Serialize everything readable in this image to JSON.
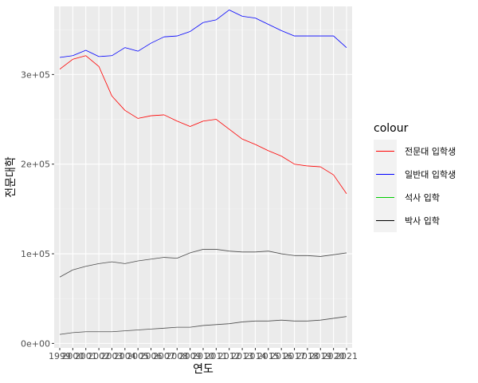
{
  "chart_data": {
    "type": "line",
    "xlabel": "연도",
    "ylabel": "전문대학",
    "legend_title": "colour",
    "legend_position": "right",
    "grid": true,
    "xlim": [
      1999,
      2021
    ],
    "ylim": [
      -5000,
      376000
    ],
    "x": [
      1999,
      2000,
      2001,
      2002,
      2003,
      2004,
      2005,
      2006,
      2007,
      2008,
      2009,
      2010,
      2011,
      2012,
      2013,
      2014,
      2015,
      2016,
      2017,
      2018,
      2019,
      2020,
      2021
    ],
    "x_ticks": [
      1999,
      2000,
      2001,
      2002,
      2003,
      2004,
      2005,
      2006,
      2007,
      2008,
      2009,
      2010,
      2011,
      2012,
      2013,
      2014,
      2015,
      2016,
      2017,
      2018,
      2019,
      2020,
      2021
    ],
    "x_tick_labels": [
      "1999",
      "2000",
      "2001",
      "2002",
      "2003",
      "2004",
      "2005",
      "2006",
      "2007",
      "2008",
      "2009",
      "2010",
      "2011",
      "2012",
      "2013",
      "2014",
      "2015",
      "2016",
      "2017",
      "2018",
      "2019",
      "2020",
      "2021"
    ],
    "y_ticks": [
      0,
      100000,
      200000,
      300000
    ],
    "y_tick_labels": [
      "0e+00",
      "1e+05",
      "2e+05",
      "3e+05"
    ],
    "series": [
      {
        "name": "전문대 입학생",
        "color": "#ff0000",
        "legend_color": "#ff0000",
        "values": [
          306000,
          317000,
          321000,
          309000,
          276000,
          260000,
          251000,
          254000,
          255000,
          248000,
          242000,
          248000,
          250000,
          239000,
          228000,
          222000,
          215000,
          209000,
          200000,
          198000,
          197000,
          188000,
          167000
        ]
      },
      {
        "name": "일반대 입학생",
        "color": "#0000ff",
        "legend_color": "#0000ff",
        "values": [
          319000,
          321000,
          327000,
          320000,
          321000,
          330000,
          326000,
          335000,
          342000,
          343000,
          348000,
          358000,
          361000,
          372000,
          365000,
          363000,
          356000,
          349000,
          343000,
          343000,
          343000,
          343000,
          330000
        ]
      },
      {
        "name": "석사 입학",
        "color": "#4d4d4d",
        "legend_color": "#00cc00",
        "values": [
          74000,
          82000,
          86000,
          89000,
          91000,
          89000,
          92000,
          94000,
          96000,
          95000,
          101000,
          105000,
          105000,
          103000,
          102000,
          102000,
          103000,
          100000,
          98000,
          98000,
          97000,
          99000,
          101000
        ]
      },
      {
        "name": "박사 입학",
        "color": "#4d4d4d",
        "legend_color": "#000000",
        "values": [
          10000,
          12000,
          13000,
          13000,
          13000,
          14000,
          15000,
          16000,
          17000,
          18000,
          18000,
          20000,
          21000,
          22000,
          24000,
          25000,
          25000,
          26000,
          25000,
          25000,
          26000,
          28000,
          30000
        ]
      }
    ]
  }
}
